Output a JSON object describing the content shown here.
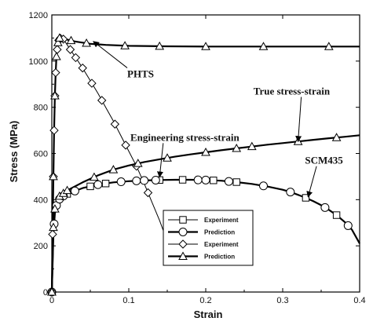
{
  "chart_data": {
    "type": "line",
    "xlabel": "Strain",
    "ylabel": "Stress (MPa)",
    "xlim": [
      0,
      0.4
    ],
    "ylim": [
      0,
      1200
    ],
    "x_ticks": [
      "0",
      "0.1",
      "0.2",
      "0.3",
      "0.4"
    ],
    "y_ticks": [
      "0",
      "200",
      "400",
      "600",
      "800",
      "1000",
      "1200"
    ],
    "grid": false,
    "legend_position": "bottom-center",
    "series": [
      {
        "name": "Experiment",
        "marker": "square",
        "line": "thin",
        "x": [
          0,
          0.002,
          0.004,
          0.006,
          0.008,
          0.012,
          0.02,
          0.04,
          0.06,
          0.08,
          0.1,
          0.12,
          0.14,
          0.16,
          0.18,
          0.2,
          0.22,
          0.24,
          0.26,
          0.28,
          0.3,
          0.31,
          0.32,
          0.33,
          0.34,
          0.35,
          0.36,
          0.37,
          0.38,
          0.39,
          0.4
        ],
        "y": [
          0,
          250,
          340,
          375,
          395,
          410,
          425,
          450,
          465,
          475,
          480,
          483,
          485,
          486,
          486,
          485,
          482,
          476,
          468,
          457,
          443,
          433,
          421,
          408,
          393,
          376,
          356,
          333,
          305,
          270,
          210
        ],
        "marker_x": [
          0.02,
          0.05,
          0.07,
          0.14,
          0.17,
          0.21,
          0.24,
          0.33,
          0.37
        ]
      },
      {
        "name": "Prediction",
        "marker": "circle",
        "line": "thick",
        "x": [
          0,
          0.002,
          0.004,
          0.006,
          0.008,
          0.012,
          0.02,
          0.04,
          0.06,
          0.08,
          0.1,
          0.12,
          0.14,
          0.16,
          0.18,
          0.2,
          0.22,
          0.24,
          0.26,
          0.28,
          0.3,
          0.31,
          0.32,
          0.33,
          0.34,
          0.35,
          0.36,
          0.37,
          0.38,
          0.39,
          0.4
        ],
        "y": [
          0,
          250,
          340,
          375,
          395,
          410,
          425,
          450,
          465,
          475,
          480,
          483,
          485,
          486,
          486,
          485,
          482,
          476,
          468,
          457,
          443,
          433,
          421,
          408,
          393,
          376,
          356,
          333,
          305,
          270,
          210
        ],
        "marker_x": [
          0,
          0.003,
          0.006,
          0.01,
          0.015,
          0.03,
          0.06,
          0.09,
          0.11,
          0.12,
          0.135,
          0.19,
          0.2,
          0.23,
          0.275,
          0.31,
          0.355,
          0.385
        ]
      },
      {
        "name": "Experiment",
        "marker": "diamond",
        "line": "thin",
        "x": [
          0,
          0.002,
          0.003,
          0.004,
          0.005,
          0.006,
          0.008,
          0.01,
          0.015,
          0.02,
          0.03,
          0.04,
          0.05,
          0.06,
          0.07,
          0.08,
          0.09,
          0.1,
          0.11,
          0.12,
          0.13,
          0.14,
          0.15
        ],
        "y": [
          0,
          500,
          700,
          850,
          950,
          1020,
          1080,
          1100,
          1095,
          1070,
          1020,
          970,
          915,
          860,
          800,
          740,
          675,
          610,
          545,
          470,
          390,
          310,
          220
        ],
        "marker_x": [
          0,
          0.001,
          0.002,
          0.003,
          0.004,
          0.005,
          0.007,
          0.009,
          0.011,
          0.015,
          0.024,
          0.031,
          0.04,
          0.052,
          0.065,
          0.082,
          0.096,
          0.11,
          0.125
        ]
      },
      {
        "name": "Prediction",
        "marker": "triangle",
        "line": "thick",
        "x": [
          0,
          0.002,
          0.003,
          0.004,
          0.005,
          0.006,
          0.008,
          0.01,
          0.015,
          0.02,
          0.03,
          0.05,
          0.07,
          0.1,
          0.15,
          0.2,
          0.25,
          0.3,
          0.35,
          0.4
        ],
        "y": [
          0,
          500,
          700,
          850,
          950,
          1020,
          1080,
          1100,
          1098,
          1093,
          1085,
          1075,
          1070,
          1066,
          1064,
          1063,
          1063,
          1063,
          1063,
          1063
        ],
        "marker_x": [
          0,
          0.002,
          0.004,
          0.006,
          0.008,
          0.01,
          0.025,
          0.045,
          0.095,
          0.14,
          0.2,
          0.275,
          0.36
        ]
      },
      {
        "name": "Prediction",
        "marker": "triangle",
        "line": "thick",
        "x": [
          0,
          0.002,
          0.004,
          0.006,
          0.01,
          0.02,
          0.04,
          0.06,
          0.08,
          0.1,
          0.12,
          0.14,
          0.16,
          0.18,
          0.2,
          0.22,
          0.24,
          0.26,
          0.28,
          0.3,
          0.32,
          0.34,
          0.36,
          0.38,
          0.4
        ],
        "y": [
          0,
          280,
          360,
          390,
          415,
          440,
          475,
          505,
          530,
          548,
          563,
          575,
          586,
          596,
          605,
          614,
          622,
          630,
          638,
          645,
          652,
          659,
          666,
          672,
          679
        ],
        "marker_x": [
          0,
          0.002,
          0.004,
          0.01,
          0.015,
          0.02,
          0.055,
          0.08,
          0.112,
          0.15,
          0.2,
          0.24,
          0.26,
          0.32,
          0.37
        ]
      }
    ],
    "annotations": [
      {
        "text": "PHTS",
        "x": 0.098,
        "y": 930,
        "arrow_to": [
          0.054,
          1085
        ]
      },
      {
        "text": "True stress-strain",
        "x": 0.262,
        "y": 855,
        "arrow_to": [
          0.32,
          652
        ]
      },
      {
        "text": "Engineering stress-strain",
        "x": 0.102,
        "y": 655,
        "arrow_to": [
          0.14,
          498
        ]
      },
      {
        "text": "SCM435",
        "x": 0.329,
        "y": 555,
        "arrow_to": [
          0.333,
          412
        ]
      }
    ]
  }
}
